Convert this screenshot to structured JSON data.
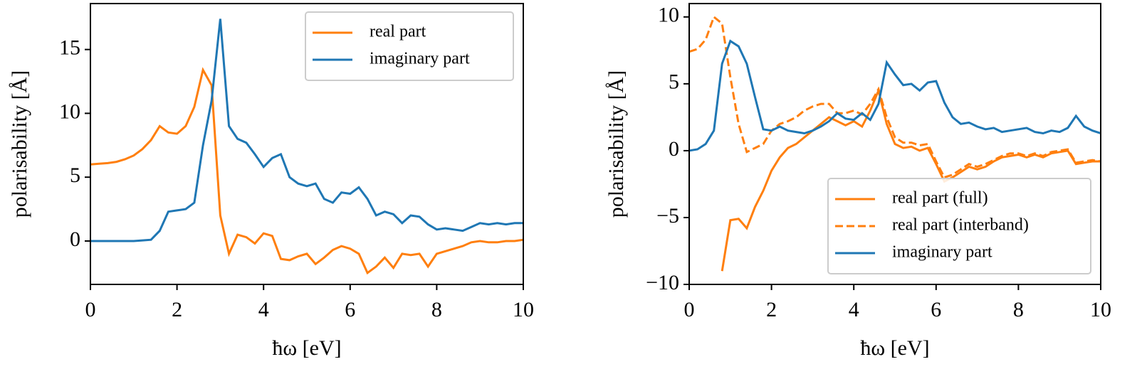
{
  "chart_data": [
    {
      "type": "line",
      "xlabel": "ħω [eV]",
      "ylabel": "polarisability [Å]",
      "x": [
        0,
        0.2,
        0.4,
        0.6,
        0.8,
        1.0,
        1.2,
        1.4,
        1.6,
        1.8,
        2.0,
        2.2,
        2.4,
        2.6,
        2.8,
        3.0,
        3.2,
        3.4,
        3.6,
        3.8,
        4.0,
        4.2,
        4.4,
        4.6,
        4.8,
        5.0,
        5.2,
        5.4,
        5.6,
        5.8,
        6.0,
        6.2,
        6.4,
        6.6,
        6.8,
        7.0,
        7.2,
        7.4,
        7.6,
        7.8,
        8.0,
        8.2,
        8.4,
        8.6,
        8.8,
        9.0,
        9.2,
        9.4,
        9.6,
        9.8,
        10
      ],
      "series": [
        {
          "name": "real part",
          "color": "#ff7f0e",
          "dashed": false,
          "values": [
            6.0,
            6.05,
            6.1,
            6.2,
            6.4,
            6.7,
            7.2,
            7.9,
            9.0,
            8.5,
            8.4,
            9.0,
            10.5,
            13.4,
            12.2,
            2.0,
            -1.0,
            0.5,
            0.3,
            -0.2,
            0.6,
            0.4,
            -1.4,
            -1.5,
            -1.2,
            -1.0,
            -1.8,
            -1.3,
            -0.7,
            -0.4,
            -0.6,
            -1.0,
            -2.5,
            -2.0,
            -1.3,
            -2.1,
            -1.0,
            -1.1,
            -1.0,
            -2.0,
            -1.0,
            -0.8,
            -0.6,
            -0.4,
            -0.1,
            0.0,
            -0.1,
            -0.1,
            0.0,
            0.0,
            0.1
          ]
        },
        {
          "name": "imaginary part",
          "color": "#1f77b4",
          "dashed": false,
          "values": [
            0,
            0,
            0,
            0,
            0,
            0,
            0.05,
            0.1,
            0.8,
            2.3,
            2.4,
            2.5,
            3.0,
            7.5,
            11.0,
            17.4,
            9.0,
            8.0,
            7.7,
            6.8,
            5.8,
            6.5,
            6.8,
            5.0,
            4.5,
            4.3,
            4.5,
            3.3,
            3.0,
            3.8,
            3.7,
            4.2,
            3.3,
            2.0,
            2.3,
            2.1,
            1.4,
            2.0,
            1.9,
            1.3,
            0.9,
            1.0,
            0.9,
            0.8,
            1.1,
            1.4,
            1.3,
            1.4,
            1.3,
            1.4,
            1.4
          ]
        }
      ],
      "xlim": [
        0,
        10
      ],
      "xticks": [
        0,
        2,
        4,
        6,
        8,
        10
      ],
      "ylim": [
        -3.4,
        18.6
      ],
      "yticks": [
        0,
        5,
        10,
        15
      ],
      "legend": "upper-right",
      "grid": false
    },
    {
      "type": "line",
      "xlabel": "ħω [eV]",
      "ylabel": "polarisability [Å]",
      "x": [
        0,
        0.2,
        0.4,
        0.6,
        0.8,
        1.0,
        1.2,
        1.4,
        1.6,
        1.8,
        2.0,
        2.2,
        2.4,
        2.6,
        2.8,
        3.0,
        3.2,
        3.4,
        3.6,
        3.8,
        4.0,
        4.2,
        4.4,
        4.6,
        4.8,
        5.0,
        5.2,
        5.4,
        5.6,
        5.8,
        6.0,
        6.2,
        6.4,
        6.6,
        6.8,
        7.0,
        7.2,
        7.4,
        7.6,
        7.8,
        8.0,
        8.2,
        8.4,
        8.6,
        8.8,
        9.0,
        9.2,
        9.4,
        9.6,
        9.8,
        10
      ],
      "series": [
        {
          "name": "real part (full)",
          "color": "#ff7f0e",
          "dashed": false,
          "values": [
            null,
            null,
            null,
            null,
            -9.0,
            -5.2,
            -5.1,
            -5.8,
            -4.2,
            -3.0,
            -1.5,
            -0.5,
            0.2,
            0.5,
            1.0,
            1.5,
            2.0,
            2.5,
            2.2,
            1.9,
            2.2,
            1.8,
            3.0,
            4.5,
            2.0,
            0.5,
            0.2,
            0.3,
            0.0,
            0.2,
            -1.0,
            -2.3,
            -2.0,
            -1.6,
            -1.2,
            -1.4,
            -1.2,
            -0.8,
            -0.5,
            -0.4,
            -0.3,
            -0.5,
            -0.3,
            -0.5,
            -0.2,
            -0.1,
            0.0,
            -1.0,
            -0.9,
            -0.8,
            -0.8
          ]
        },
        {
          "name": "real part (interband)",
          "color": "#ff7f0e",
          "dashed": true,
          "values": [
            7.4,
            7.6,
            8.3,
            10.0,
            9.5,
            5.5,
            2.0,
            -0.1,
            0.2,
            0.5,
            1.5,
            2.0,
            2.2,
            2.5,
            3.0,
            3.3,
            3.5,
            3.5,
            2.8,
            2.8,
            3.0,
            2.7,
            3.5,
            4.6,
            2.5,
            1.0,
            0.6,
            0.6,
            0.4,
            0.5,
            -0.8,
            -2.0,
            -1.8,
            -1.4,
            -1.0,
            -1.2,
            -1.0,
            -0.7,
            -0.4,
            -0.2,
            -0.2,
            -0.4,
            -0.2,
            -0.4,
            -0.1,
            0.0,
            0.1,
            -0.9,
            -0.8,
            -0.7,
            -0.8
          ]
        },
        {
          "name": "imaginary part",
          "color": "#1f77b4",
          "dashed": false,
          "values": [
            0,
            0.1,
            0.5,
            1.5,
            6.5,
            8.2,
            7.8,
            6.5,
            4.0,
            1.6,
            1.5,
            1.8,
            1.5,
            1.4,
            1.3,
            1.5,
            1.8,
            2.2,
            2.8,
            2.4,
            2.3,
            2.8,
            2.3,
            3.5,
            6.6,
            5.7,
            4.9,
            5.0,
            4.5,
            5.1,
            5.2,
            3.6,
            2.5,
            2.0,
            2.1,
            1.8,
            1.6,
            1.7,
            1.4,
            1.5,
            1.6,
            1.7,
            1.4,
            1.3,
            1.5,
            1.4,
            1.7,
            2.6,
            1.8,
            1.5,
            1.3
          ]
        }
      ],
      "xlim": [
        0,
        10
      ],
      "xticks": [
        0,
        2,
        4,
        6,
        8,
        10
      ],
      "ylim": [
        -10,
        11
      ],
      "yticks": [
        {
          "value": -10,
          "label": "−10"
        },
        {
          "value": -5,
          "label": "−5"
        },
        0,
        5,
        10
      ],
      "legend": "lower-right",
      "grid": false
    }
  ]
}
